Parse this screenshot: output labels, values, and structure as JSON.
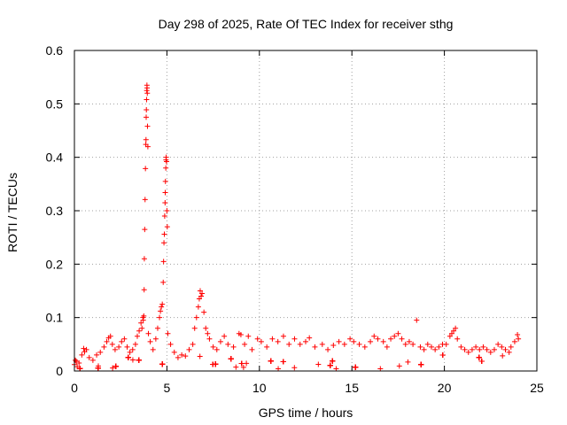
{
  "chart_data": {
    "type": "scatter",
    "title": "Day 298 of 2025, Rate Of TEC Index for receiver sthg",
    "xlabel": "GPS time / hours",
    "ylabel": "ROTI / TECUs",
    "xlim": [
      0,
      25
    ],
    "ylim": [
      0,
      0.6
    ],
    "xticks": [
      0,
      5,
      10,
      15,
      20,
      25
    ],
    "yticks": [
      0,
      0.1,
      0.2,
      0.3,
      0.4,
      0.5,
      0.6
    ],
    "grid": true,
    "marker": "plus",
    "marker_color": "#ff0000",
    "series": [
      {
        "name": "ROTI",
        "points": [
          [
            0.0,
            0.012
          ],
          [
            0.05,
            0.02
          ],
          [
            0.1,
            0.018
          ],
          [
            0.15,
            0.008
          ],
          [
            0.25,
            0.015
          ],
          [
            0.4,
            0.03
          ],
          [
            0.5,
            0.042
          ],
          [
            0.55,
            0.036
          ],
          [
            0.65,
            0.04
          ],
          [
            0.8,
            0.025
          ],
          [
            1.0,
            0.02
          ],
          [
            1.2,
            0.03
          ],
          [
            1.4,
            0.035
          ],
          [
            1.6,
            0.045
          ],
          [
            1.75,
            0.055
          ],
          [
            1.85,
            0.062
          ],
          [
            1.95,
            0.065
          ],
          [
            2.05,
            0.05
          ],
          [
            2.2,
            0.04
          ],
          [
            2.4,
            0.045
          ],
          [
            2.55,
            0.055
          ],
          [
            2.7,
            0.06
          ],
          [
            2.85,
            0.045
          ],
          [
            3.0,
            0.035
          ],
          [
            3.15,
            0.04
          ],
          [
            3.3,
            0.05
          ],
          [
            3.4,
            0.065
          ],
          [
            3.5,
            0.075
          ],
          [
            3.6,
            0.09
          ],
          [
            3.65,
            0.08
          ],
          [
            3.7,
            0.1
          ],
          [
            3.72,
            0.095
          ],
          [
            3.75,
            0.103
          ],
          [
            3.77,
            0.152
          ],
          [
            3.78,
            0.21
          ],
          [
            3.8,
            0.265
          ],
          [
            3.82,
            0.321
          ],
          [
            3.84,
            0.379
          ],
          [
            3.86,
            0.424
          ],
          [
            3.87,
            0.433
          ],
          [
            3.88,
            0.475
          ],
          [
            3.89,
            0.489
          ],
          [
            3.9,
            0.508
          ],
          [
            3.91,
            0.525
          ],
          [
            3.92,
            0.535
          ],
          [
            3.93,
            0.53
          ],
          [
            3.94,
            0.52
          ],
          [
            3.95,
            0.458
          ],
          [
            3.97,
            0.42
          ],
          [
            4.0,
            0.07
          ],
          [
            4.1,
            0.055
          ],
          [
            4.25,
            0.04
          ],
          [
            4.4,
            0.06
          ],
          [
            4.5,
            0.08
          ],
          [
            4.6,
            0.1
          ],
          [
            4.65,
            0.112
          ],
          [
            4.7,
            0.12
          ],
          [
            4.75,
            0.125
          ],
          [
            4.8,
            0.166
          ],
          [
            4.82,
            0.205
          ],
          [
            4.84,
            0.24
          ],
          [
            4.86,
            0.256
          ],
          [
            4.88,
            0.29
          ],
          [
            4.9,
            0.315
          ],
          [
            4.91,
            0.334
          ],
          [
            4.92,
            0.355
          ],
          [
            4.94,
            0.38
          ],
          [
            4.95,
            0.395
          ],
          [
            4.96,
            0.4
          ],
          [
            4.98,
            0.392
          ],
          [
            5.0,
            0.3
          ],
          [
            5.02,
            0.27
          ],
          [
            5.05,
            0.07
          ],
          [
            5.2,
            0.05
          ],
          [
            5.4,
            0.035
          ],
          [
            5.6,
            0.025
          ],
          [
            5.8,
            0.03
          ],
          [
            6.0,
            0.028
          ],
          [
            6.2,
            0.04
          ],
          [
            6.4,
            0.05
          ],
          [
            6.5,
            0.08
          ],
          [
            6.6,
            0.1
          ],
          [
            6.7,
            0.12
          ],
          [
            6.75,
            0.135
          ],
          [
            6.8,
            0.15
          ],
          [
            6.85,
            0.14
          ],
          [
            6.9,
            0.145
          ],
          [
            7.0,
            0.11
          ],
          [
            7.1,
            0.08
          ],
          [
            7.2,
            0.07
          ],
          [
            7.3,
            0.06
          ],
          [
            7.5,
            0.045
          ],
          [
            7.7,
            0.04
          ],
          [
            7.9,
            0.055
          ],
          [
            8.1,
            0.065
          ],
          [
            8.3,
            0.05
          ],
          [
            8.6,
            0.045
          ],
          [
            8.9,
            0.07
          ],
          [
            9.0,
            0.068
          ],
          [
            9.2,
            0.05
          ],
          [
            9.4,
            0.065
          ],
          [
            9.6,
            0.04
          ],
          [
            9.9,
            0.06
          ],
          [
            10.1,
            0.055
          ],
          [
            10.4,
            0.045
          ],
          [
            10.7,
            0.06
          ],
          [
            11.0,
            0.055
          ],
          [
            11.3,
            0.065
          ],
          [
            11.6,
            0.05
          ],
          [
            11.9,
            0.06
          ],
          [
            12.2,
            0.05
          ],
          [
            12.5,
            0.055
          ],
          [
            12.7,
            0.062
          ],
          [
            13.0,
            0.045
          ],
          [
            13.4,
            0.05
          ],
          [
            13.7,
            0.04
          ],
          [
            14.0,
            0.048
          ],
          [
            14.3,
            0.055
          ],
          [
            14.6,
            0.05
          ],
          [
            14.9,
            0.06
          ],
          [
            15.1,
            0.055
          ],
          [
            15.4,
            0.05
          ],
          [
            15.7,
            0.045
          ],
          [
            16.0,
            0.055
          ],
          [
            16.2,
            0.065
          ],
          [
            16.4,
            0.06
          ],
          [
            16.7,
            0.055
          ],
          [
            16.9,
            0.045
          ],
          [
            17.1,
            0.06
          ],
          [
            17.3,
            0.065
          ],
          [
            17.5,
            0.07
          ],
          [
            17.7,
            0.06
          ],
          [
            17.9,
            0.05
          ],
          [
            18.1,
            0.055
          ],
          [
            18.3,
            0.05
          ],
          [
            18.5,
            0.095
          ],
          [
            18.7,
            0.045
          ],
          [
            18.9,
            0.04
          ],
          [
            19.1,
            0.05
          ],
          [
            19.3,
            0.045
          ],
          [
            19.5,
            0.04
          ],
          [
            19.7,
            0.045
          ],
          [
            19.9,
            0.05
          ],
          [
            20.1,
            0.05
          ],
          [
            20.3,
            0.065
          ],
          [
            20.4,
            0.07
          ],
          [
            20.5,
            0.075
          ],
          [
            20.6,
            0.08
          ],
          [
            20.7,
            0.06
          ],
          [
            20.9,
            0.045
          ],
          [
            21.1,
            0.04
          ],
          [
            21.3,
            0.035
          ],
          [
            21.5,
            0.04
          ],
          [
            21.7,
            0.045
          ],
          [
            21.9,
            0.04
          ],
          [
            22.1,
            0.045
          ],
          [
            22.3,
            0.04
          ],
          [
            22.5,
            0.035
          ],
          [
            22.7,
            0.04
          ],
          [
            22.9,
            0.05
          ],
          [
            23.1,
            0.045
          ],
          [
            23.3,
            0.04
          ],
          [
            23.5,
            0.035
          ],
          [
            23.6,
            0.045
          ],
          [
            23.8,
            0.055
          ],
          [
            23.95,
            0.068
          ],
          [
            24.0,
            0.06
          ]
        ]
      }
    ]
  }
}
